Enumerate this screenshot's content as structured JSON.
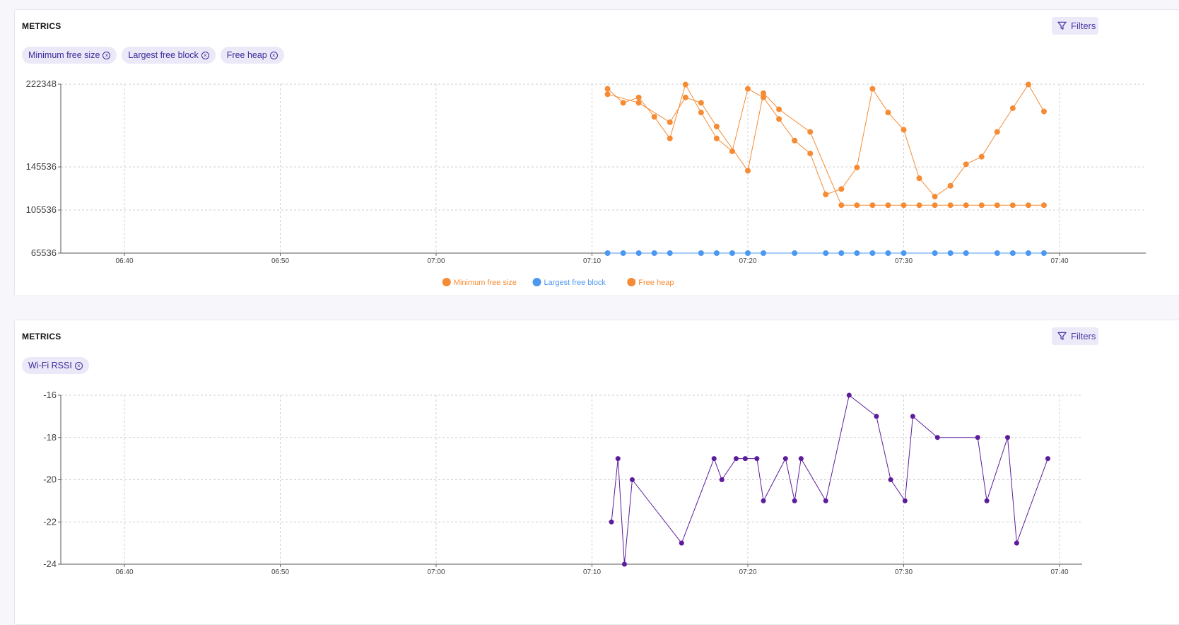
{
  "panels": [
    {
      "title": "METRICS",
      "filters_label": "Filters",
      "chips": [
        "Minimum free size",
        "Largest free block",
        "Free heap"
      ]
    },
    {
      "title": "METRICS",
      "filters_label": "Filters",
      "chips": [
        "Wi-Fi RSSI"
      ]
    }
  ],
  "colors": {
    "orange": "#f58b34",
    "blue": "#4c97f0",
    "purple": "#5d1c9c",
    "accent": "#4a3aa8"
  },
  "chart_data": [
    {
      "type": "scatter",
      "title": "",
      "xlabel": "",
      "ylabel": "",
      "x_ticks": [
        "06:40",
        "06:50",
        "07:00",
        "07:10",
        "07:20",
        "07:30",
        "07:40"
      ],
      "y_ticks": [
        65536,
        105536,
        145536,
        222348
      ],
      "ylim": [
        65536,
        222348
      ],
      "grid": true,
      "legend_position": "bottom-center",
      "series": [
        {
          "name": "Minimum free size",
          "color": "#f58b34",
          "points": [
            [
              "07:11",
              213000
            ],
            [
              "07:13",
              205000
            ],
            [
              "07:15",
              187000
            ],
            [
              "07:16",
              210000
            ],
            [
              "07:17",
              205000
            ],
            [
              "07:18",
              183000
            ],
            [
              "07:20",
              142000
            ],
            [
              "07:21",
              214000
            ],
            [
              "07:22",
              199000
            ],
            [
              "07:24",
              178000
            ],
            [
              "07:26",
              110000
            ],
            [
              "07:27",
              110000
            ],
            [
              "07:28",
              110000
            ],
            [
              "07:29",
              110000
            ],
            [
              "07:30",
              110000
            ],
            [
              "07:31",
              110000
            ],
            [
              "07:32",
              110000
            ],
            [
              "07:33",
              110000
            ],
            [
              "07:34",
              110000
            ],
            [
              "07:35",
              110000
            ],
            [
              "07:36",
              110000
            ],
            [
              "07:37",
              110000
            ],
            [
              "07:38",
              110000
            ],
            [
              "07:39",
              110000
            ]
          ]
        },
        {
          "name": "Largest free block",
          "color": "#4c97f0",
          "points": [
            [
              "07:11",
              65536
            ],
            [
              "07:12",
              65536
            ],
            [
              "07:13",
              65536
            ],
            [
              "07:14",
              65536
            ],
            [
              "07:15",
              65536
            ],
            [
              "07:17",
              65536
            ],
            [
              "07:18",
              65536
            ],
            [
              "07:19",
              65536
            ],
            [
              "07:20",
              65536
            ],
            [
              "07:21",
              65536
            ],
            [
              "07:23",
              65536
            ],
            [
              "07:25",
              65536
            ],
            [
              "07:26",
              65536
            ],
            [
              "07:27",
              65536
            ],
            [
              "07:28",
              65536
            ],
            [
              "07:29",
              65536
            ],
            [
              "07:30",
              65536
            ],
            [
              "07:32",
              65536
            ],
            [
              "07:33",
              65536
            ],
            [
              "07:34",
              65536
            ],
            [
              "07:36",
              65536
            ],
            [
              "07:37",
              65536
            ],
            [
              "07:38",
              65536
            ],
            [
              "07:39",
              65536
            ]
          ]
        },
        {
          "name": "Free heap",
          "color": "#f58b34",
          "points": [
            [
              "07:11",
              218000
            ],
            [
              "07:12",
              205000
            ],
            [
              "07:13",
              210000
            ],
            [
              "07:14",
              192000
            ],
            [
              "07:15",
              172000
            ],
            [
              "07:16",
              222000
            ],
            [
              "07:17",
              196000
            ],
            [
              "07:18",
              172000
            ],
            [
              "07:19",
              160000
            ],
            [
              "07:20",
              218000
            ],
            [
              "07:21",
              210000
            ],
            [
              "07:22",
              190000
            ],
            [
              "07:23",
              170000
            ],
            [
              "07:24",
              158000
            ],
            [
              "07:25",
              120000
            ],
            [
              "07:26",
              125000
            ],
            [
              "07:27",
              145000
            ],
            [
              "07:28",
              218000
            ],
            [
              "07:29",
              196000
            ],
            [
              "07:30",
              180000
            ],
            [
              "07:31",
              135000
            ],
            [
              "07:32",
              118000
            ],
            [
              "07:33",
              128000
            ],
            [
              "07:34",
              148000
            ],
            [
              "07:35",
              155000
            ],
            [
              "07:36",
              178000
            ],
            [
              "07:37",
              200000
            ],
            [
              "07:38",
              222000
            ],
            [
              "07:39",
              197000
            ]
          ]
        }
      ]
    },
    {
      "type": "line",
      "title": "",
      "xlabel": "",
      "ylabel": "",
      "x_ticks": [
        "06:40",
        "06:50",
        "07:00",
        "07:10",
        "07:20",
        "07:30",
        "07:40"
      ],
      "y_ticks": [
        -16,
        -18,
        -20,
        -22,
        -24
      ],
      "ylim": [
        -24,
        -16
      ],
      "grid": true,
      "series": [
        {
          "name": "Wi-Fi RSSI",
          "color": "#5d1c9c",
          "points": [
            [
              "07:11:15",
              -22
            ],
            [
              "07:11:40",
              -19
            ],
            [
              "07:12:05",
              -24
            ],
            [
              "07:12:35",
              -20
            ],
            [
              "07:15:45",
              -23
            ],
            [
              "07:17:50",
              -19
            ],
            [
              "07:18:20",
              -20
            ],
            [
              "07:19:15",
              -19
            ],
            [
              "07:19:50",
              -19
            ],
            [
              "07:20:35",
              -19
            ],
            [
              "07:21:00",
              -21
            ],
            [
              "07:22:25",
              -19
            ],
            [
              "07:23:00",
              -21
            ],
            [
              "07:23:25",
              -19
            ],
            [
              "07:25:00",
              -21
            ],
            [
              "07:26:30",
              -16
            ],
            [
              "07:28:15",
              -17
            ],
            [
              "07:29:10",
              -20
            ],
            [
              "07:30:05",
              -21
            ],
            [
              "07:30:35",
              -17
            ],
            [
              "07:32:10",
              -18
            ],
            [
              "07:34:45",
              -18
            ],
            [
              "07:35:20",
              -21
            ],
            [
              "07:36:40",
              -18
            ],
            [
              "07:37:15",
              -23
            ],
            [
              "07:39:15",
              -19
            ]
          ]
        }
      ]
    }
  ]
}
